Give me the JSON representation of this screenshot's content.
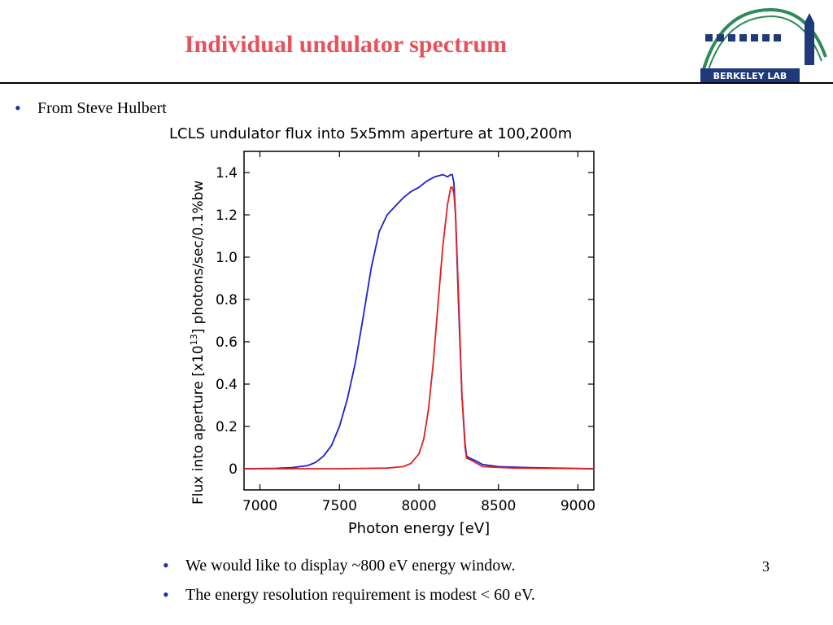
{
  "slide": {
    "title": "Individual undulator spectrum",
    "page_number": "3",
    "bullets": [
      "From Steve Hulbert",
      "We would like to display ~800 eV energy window.",
      "The energy resolution requirement is modest < 60 eV."
    ],
    "logo_text": "BERKELEY LAB",
    "colors": {
      "title": "#e8505a",
      "bullet": "#1a2fb0"
    }
  },
  "chart_data": {
    "type": "line",
    "title": "LCLS undulator flux into 5x5mm aperture at 100,200m",
    "xlabel": "Photon energy [eV]",
    "ylabel_main": "Flux into aperture [x10",
    "ylabel_exp": "13",
    "ylabel_tail": "] photons/sec/0.1%bw",
    "xlim": [
      6900,
      9100
    ],
    "ylim": [
      -0.1,
      1.5
    ],
    "xticks": [
      7000,
      7500,
      8000,
      8500,
      9000
    ],
    "yticks": [
      0,
      0.2,
      0.4,
      0.6,
      0.8,
      1.0,
      1.2,
      1.4
    ],
    "ytick_labels": [
      "0",
      "0.2",
      "0.4",
      "0.6",
      "0.8",
      "1.0",
      "1.2",
      "1.4"
    ],
    "grid": false,
    "series": [
      {
        "color": "#1f1fd0",
        "x": [
          6900,
          7100,
          7200,
          7300,
          7350,
          7400,
          7450,
          7500,
          7550,
          7600,
          7650,
          7700,
          7750,
          7800,
          7850,
          7900,
          7950,
          8000,
          8050,
          8100,
          8150,
          8180,
          8200,
          8210,
          8220,
          8230,
          8250,
          8270,
          8290,
          8300,
          8320,
          8350,
          8400,
          8500,
          8700,
          9100
        ],
        "y": [
          0,
          0.002,
          0.005,
          0.015,
          0.03,
          0.06,
          0.11,
          0.2,
          0.33,
          0.5,
          0.72,
          0.95,
          1.12,
          1.2,
          1.24,
          1.28,
          1.31,
          1.33,
          1.36,
          1.38,
          1.39,
          1.38,
          1.39,
          1.39,
          1.35,
          1.2,
          0.75,
          0.35,
          0.12,
          0.06,
          0.05,
          0.04,
          0.02,
          0.01,
          0.005,
          0
        ]
      },
      {
        "color": "#e02020",
        "x": [
          6900,
          7500,
          7800,
          7900,
          7950,
          8000,
          8030,
          8060,
          8090,
          8120,
          8150,
          8180,
          8200,
          8210,
          8220,
          8230,
          8250,
          8270,
          8290,
          8300,
          8330,
          8400,
          8600,
          9100
        ],
        "y": [
          0,
          0,
          0.003,
          0.01,
          0.025,
          0.07,
          0.14,
          0.28,
          0.5,
          0.78,
          1.05,
          1.25,
          1.33,
          1.33,
          1.3,
          1.2,
          0.8,
          0.35,
          0.1,
          0.05,
          0.04,
          0.01,
          0.003,
          0
        ]
      }
    ]
  }
}
